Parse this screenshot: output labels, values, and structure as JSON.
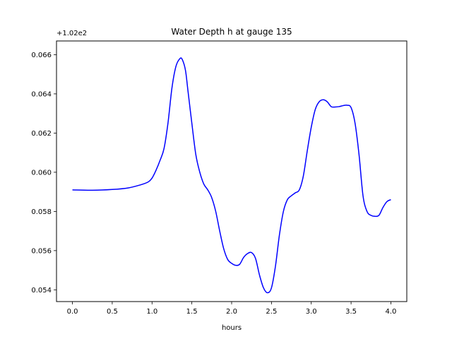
{
  "chart_data": {
    "type": "line",
    "title": "Water Depth h at gauge 135",
    "xlabel": "hours",
    "ylabel": "",
    "y_offset_text": "+1.02e2",
    "xlim": [
      -0.2,
      4.2
    ],
    "ylim": [
      0.0534,
      0.0667
    ],
    "x_ticks": [
      0.0,
      0.5,
      1.0,
      1.5,
      2.0,
      2.5,
      3.0,
      3.5,
      4.0
    ],
    "x_tick_labels": [
      "0.0",
      "0.5",
      "1.0",
      "1.5",
      "2.0",
      "2.5",
      "3.0",
      "3.5",
      "4.0"
    ],
    "y_ticks": [
      0.054,
      0.056,
      0.058,
      0.06,
      0.062,
      0.064,
      0.066
    ],
    "y_tick_labels": [
      "0.054",
      "0.056",
      "0.058",
      "0.060",
      "0.062",
      "0.064",
      "0.066"
    ],
    "grid": false,
    "series": [
      {
        "color": "#0000ff",
        "x": [
          0.0,
          0.25,
          0.5,
          0.7,
          0.85,
          0.95,
          1.0,
          1.05,
          1.1,
          1.15,
          1.2,
          1.25,
          1.3,
          1.35,
          1.38,
          1.42,
          1.45,
          1.5,
          1.55,
          1.6,
          1.65,
          1.7,
          1.75,
          1.8,
          1.85,
          1.9,
          1.95,
          2.0,
          2.05,
          2.1,
          2.15,
          2.2,
          2.25,
          2.3,
          2.35,
          2.4,
          2.45,
          2.5,
          2.55,
          2.6,
          2.65,
          2.7,
          2.75,
          2.8,
          2.85,
          2.9,
          2.95,
          3.0,
          3.05,
          3.1,
          3.15,
          3.2,
          3.25,
          3.3,
          3.35,
          3.4,
          3.45,
          3.5,
          3.55,
          3.6,
          3.65,
          3.7,
          3.75,
          3.8,
          3.85,
          3.9,
          3.95,
          4.0
        ],
        "y": [
          0.0591,
          0.05908,
          0.05912,
          0.0592,
          0.05935,
          0.0595,
          0.0597,
          0.0601,
          0.0606,
          0.0612,
          0.0625,
          0.0643,
          0.0654,
          0.0658,
          0.06575,
          0.0652,
          0.0642,
          0.0625,
          0.0609,
          0.06,
          0.0594,
          0.0591,
          0.0587,
          0.058,
          0.057,
          0.0561,
          0.05555,
          0.05535,
          0.05525,
          0.0553,
          0.05565,
          0.05585,
          0.0559,
          0.0556,
          0.05475,
          0.0541,
          0.05385,
          0.0541,
          0.0552,
          0.0568,
          0.058,
          0.0586,
          0.0588,
          0.05895,
          0.0591,
          0.0598,
          0.0611,
          0.0623,
          0.0632,
          0.0636,
          0.0637,
          0.0636,
          0.06335,
          0.06333,
          0.06335,
          0.0634,
          0.06342,
          0.0633,
          0.0625,
          0.0609,
          0.0588,
          0.058,
          0.0578,
          0.05775,
          0.0578,
          0.0582,
          0.0585,
          0.0586
        ]
      }
    ]
  }
}
